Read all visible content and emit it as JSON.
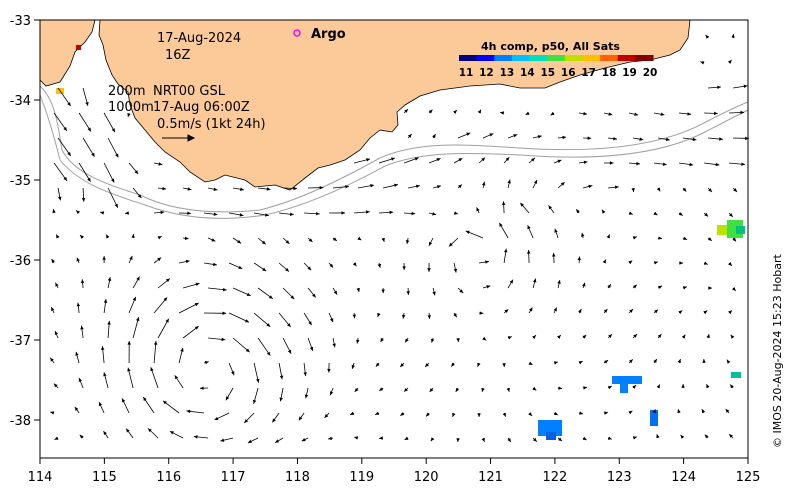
{
  "map": {
    "date": "17-Aug-2024",
    "hour": "16Z",
    "legend_argo": "Argo",
    "contour_label_1": "200m",
    "contour_label_2": "1000m",
    "product": "NRT00 GSL",
    "product_time": "17-Aug 06:00Z",
    "scale_label": "0.5m/s (1kt 24h)",
    "credit": "© IMOS 20-Aug-2024 15:23 Hobart",
    "lon_ticks": [
      "114",
      "115",
      "116",
      "117",
      "118",
      "119",
      "120",
      "121",
      "122",
      "123",
      "124",
      "125"
    ],
    "lat_ticks": [
      "-33",
      "-34",
      "-35",
      "-36",
      "-37",
      "-38"
    ]
  },
  "colorbar": {
    "title": "4h comp, p50, All Sats",
    "ticks": [
      "11",
      "12",
      "13",
      "14",
      "15",
      "16",
      "17",
      "18",
      "19",
      "20"
    ],
    "colors": [
      "#000080",
      "#0000ff",
      "#0080ff",
      "#00c0ff",
      "#00e0c0",
      "#40e040",
      "#c0e000",
      "#ffc000",
      "#ff6000",
      "#c00000",
      "#800000"
    ]
  },
  "colors": {
    "land": "#fcca98",
    "argo": "#ff00ff",
    "contour": "#a0a0a0"
  }
}
